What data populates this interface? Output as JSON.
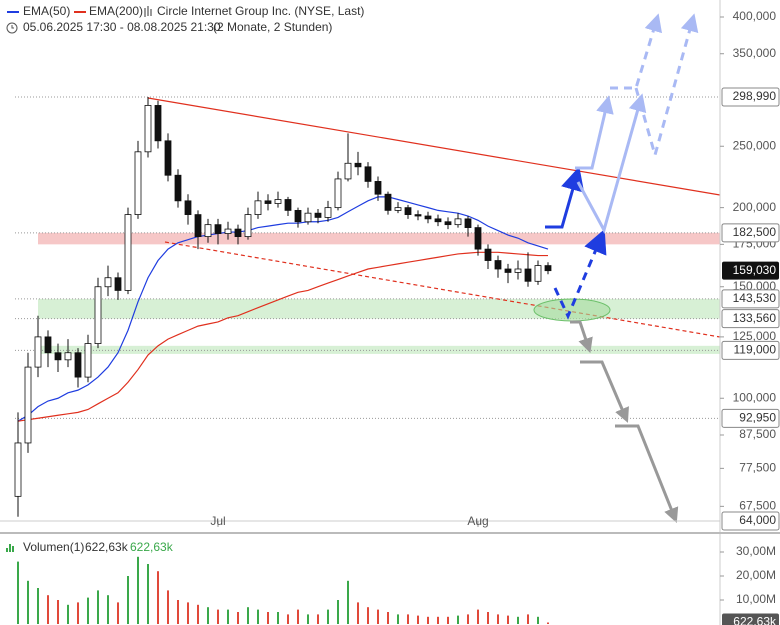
{
  "chart_data": {
    "type": "candlestick",
    "title": "Circle Internet Group Inc. (NYSE, Last)",
    "subtitle": "05.06.2025 17:30 - 08.08.2025 21:30",
    "period": "(2 Monate, 2 Stunden)",
    "log_scale": true,
    "categories": [
      null,
      null,
      null,
      null,
      null,
      null,
      null,
      null,
      null,
      null,
      null,
      null,
      null,
      null,
      null,
      null,
      null,
      null,
      null,
      null,
      "Jul",
      null,
      null,
      null,
      null,
      null,
      null,
      null,
      null,
      null,
      null,
      null,
      null,
      null,
      null,
      null,
      null,
      null,
      null,
      null,
      null,
      null,
      null,
      null,
      null,
      null,
      "Aug",
      null,
      null,
      null,
      null,
      null,
      null,
      null
    ],
    "open": [
      70000,
      85000,
      112000,
      125000,
      118000,
      115000,
      118000,
      108000,
      122000,
      150000,
      155000,
      148000,
      195000,
      245000,
      290000,
      255000,
      225000,
      205000,
      195000,
      180000,
      188000,
      182000,
      185000,
      180000,
      195000,
      205000,
      203000,
      206000,
      198000,
      190000,
      196000,
      193000,
      200000,
      222000,
      235000,
      232000,
      220000,
      210000,
      198000,
      200000,
      195000,
      194000,
      192000,
      190000,
      188000,
      192000,
      186000,
      172000,
      165000,
      160000,
      158000,
      160000,
      153000,
      162000
    ],
    "high": [
      95000,
      118000,
      135000,
      128000,
      122000,
      124000,
      120000,
      126000,
      155000,
      162000,
      158000,
      200000,
      255000,
      299000,
      295000,
      262000,
      230000,
      210000,
      198000,
      192000,
      192000,
      190000,
      188000,
      200000,
      212000,
      210000,
      212000,
      208000,
      200000,
      200000,
      199000,
      205000,
      228000,
      262000,
      245000,
      236000,
      224000,
      212000,
      204000,
      202000,
      198000,
      197000,
      195000,
      193000,
      196000,
      194000,
      188000,
      175000,
      168000,
      163000,
      165000,
      170000,
      165000,
      164000
    ],
    "low": [
      65000,
      82000,
      108000,
      112000,
      110000,
      112000,
      104000,
      106000,
      120000,
      145000,
      143000,
      146000,
      192000,
      240000,
      248000,
      220000,
      200000,
      188000,
      172000,
      176000,
      175000,
      178000,
      175000,
      178000,
      192000,
      198000,
      200000,
      194000,
      186000,
      188000,
      189000,
      190000,
      198000,
      220000,
      225000,
      215000,
      205000,
      195000,
      196000,
      192000,
      191000,
      189000,
      187000,
      185000,
      186000,
      180000,
      168000,
      160000,
      155000,
      152000,
      154000,
      150000,
      151000,
      157000
    ],
    "close": [
      85000,
      112000,
      125000,
      118000,
      115000,
      118000,
      108000,
      122000,
      150000,
      155000,
      148000,
      195000,
      245000,
      290000,
      255000,
      225000,
      205000,
      195000,
      180000,
      188000,
      182000,
      185000,
      180000,
      195000,
      205000,
      203000,
      206000,
      198000,
      190000,
      196000,
      193000,
      200000,
      222000,
      235000,
      232000,
      220000,
      210000,
      198000,
      200000,
      195000,
      194000,
      192000,
      190000,
      188000,
      192000,
      186000,
      172000,
      165000,
      160000,
      158000,
      160000,
      153000,
      162000,
      159030
    ],
    "up_fill": "#ffffff",
    "down_fill": "#111111",
    "overlays": [
      {
        "name": "EMA(50)",
        "color": "#1f3de0",
        "values": [
          92000,
          94000,
          97000,
          99000,
          100000,
          102000,
          103000,
          105000,
          108000,
          112000,
          118000,
          128000,
          142000,
          155000,
          165000,
          172000,
          176000,
          178000,
          180000,
          181000,
          182000,
          183000,
          183000,
          184000,
          186000,
          187000,
          188000,
          189000,
          189000,
          190000,
          190000,
          191000,
          193000,
          197000,
          201000,
          205000,
          208000,
          208000,
          206000,
          204000,
          202000,
          200000,
          198000,
          197000,
          196000,
          194000,
          191000,
          187000,
          184000,
          181000,
          179000,
          176000,
          174000,
          172000
        ]
      },
      {
        "name": "EMA(200)",
        "color": "#e0301e",
        "values": [
          92000,
          92500,
          93000,
          93500,
          94000,
          94500,
          95000,
          96000,
          98000,
          100000,
          102000,
          106000,
          111000,
          117000,
          121000,
          124000,
          126000,
          128000,
          130000,
          131000,
          132000,
          134000,
          135000,
          137000,
          139000,
          141000,
          143000,
          145000,
          147000,
          148000,
          150000,
          152000,
          154000,
          156000,
          158000,
          160000,
          161000,
          162000,
          163000,
          164000,
          165000,
          166000,
          167000,
          168000,
          169000,
          169500,
          170000,
          170000,
          170000,
          169500,
          169000,
          168500,
          168000,
          168000
        ]
      }
    ],
    "ylim": [
      64000,
      400000
    ],
    "yticks": [
      {
        "value": 400000,
        "label": "400,000"
      },
      {
        "value": 350000,
        "label": "350,000"
      },
      {
        "value": 250000,
        "label": "250,000"
      },
      {
        "value": 200000,
        "label": "200,000"
      },
      {
        "value": 175000,
        "label": "175,000"
      },
      {
        "value": 150000,
        "label": "150,000"
      },
      {
        "value": 125000,
        "label": "125,000"
      },
      {
        "value": 100000,
        "label": "100,000"
      },
      {
        "value": 87500,
        "label": "87,500"
      },
      {
        "value": 77500,
        "label": "77,500"
      },
      {
        "value": 67500,
        "label": "67,500"
      }
    ],
    "levels": [
      {
        "value": 298990,
        "label": "298,990"
      },
      {
        "value": 182500,
        "label": "182,500"
      },
      {
        "value": 143530,
        "label": "143,530"
      },
      {
        "value": 133560,
        "label": "133,560"
      },
      {
        "value": 119000,
        "label": "119,000"
      },
      {
        "value": 92950,
        "label": "92,950"
      },
      {
        "value": 64000,
        "label": "64,000"
      }
    ],
    "last_price": {
      "value": 159030,
      "label": "159,030"
    },
    "zones": [
      {
        "from": 175000,
        "to": 182500,
        "color": "#f4b9b9"
      },
      {
        "from": 133560,
        "to": 143530,
        "color": "#cdeccb"
      },
      {
        "from": 117500,
        "to": 121000,
        "color": "#cdeccb"
      }
    ],
    "volume": {
      "name": "Volumen(1)",
      "legend_values": [
        "622,63k",
        "622,63k"
      ],
      "last_label": "622,63k",
      "up_color": "#3aa84a",
      "down_color": "#e0493a",
      "values": [
        26000000,
        18000000,
        15000000,
        12000000,
        10000000,
        8000000,
        9000000,
        11000000,
        14000000,
        12000000,
        9000000,
        20000000,
        28000000,
        25000000,
        22000000,
        14000000,
        10000000,
        9000000,
        8000000,
        7000000,
        6000000,
        6000000,
        5000000,
        7000000,
        6000000,
        5000000,
        5000000,
        4000000,
        6000000,
        4000000,
        4000000,
        6000000,
        10000000,
        18000000,
        9000000,
        7000000,
        6000000,
        5000000,
        4000000,
        4000000,
        3500000,
        3000000,
        3000000,
        3000000,
        3500000,
        4000000,
        6000000,
        5000000,
        4000000,
        3500000,
        3000000,
        4000000,
        3000000,
        622630
      ],
      "ylim": [
        0,
        35000000
      ],
      "yticks": [
        {
          "value": 30000000,
          "label": "30,00M"
        },
        {
          "value": 20000000,
          "label": "20,00M"
        },
        {
          "value": 10000000,
          "label": "10,00M"
        }
      ]
    }
  }
}
